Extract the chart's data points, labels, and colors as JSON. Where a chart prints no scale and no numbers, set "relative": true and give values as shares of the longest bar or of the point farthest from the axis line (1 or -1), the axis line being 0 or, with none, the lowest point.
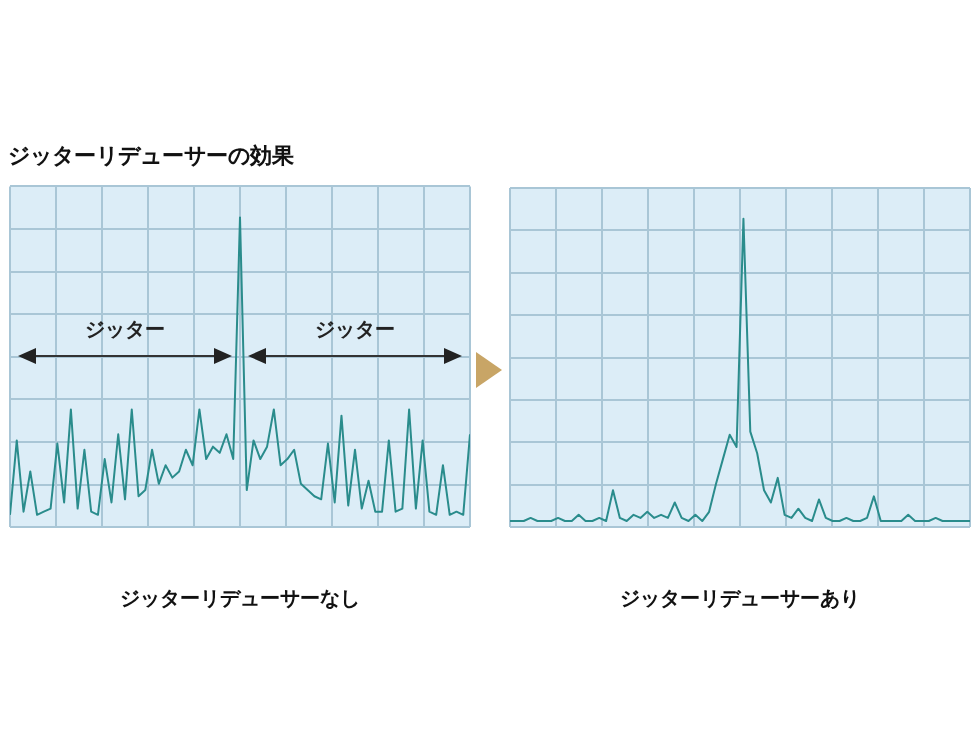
{
  "chart_data": [
    {
      "type": "line",
      "title": "ジッターリデューサーの効果",
      "xlabel": "ジッターリデューサーなし",
      "relative": true,
      "grid": true,
      "marker": "none",
      "line_style": "solid",
      "legend": false,
      "annotations": [
        "ジッター",
        "ジッター"
      ],
      "categories": [
        null,
        null,
        null,
        null,
        null,
        null,
        null,
        null,
        null,
        null,
        null,
        null,
        null,
        null,
        null,
        null,
        null,
        null,
        null,
        null,
        null,
        null,
        null,
        null,
        null,
        null,
        null,
        null,
        null,
        null,
        null,
        null,
        null,
        null,
        null,
        null,
        null,
        null,
        null,
        null,
        null,
        null,
        null,
        null,
        null,
        null,
        null,
        null,
        null,
        null,
        null,
        null,
        null,
        null,
        null,
        null,
        null,
        null,
        null,
        null,
        null,
        null,
        null,
        null,
        null,
        null,
        null,
        null,
        null
      ],
      "series": [
        {
          "color": "#2a8c8c",
          "values": [
            0.04,
            0.28,
            0.05,
            0.18,
            0.04,
            0.05,
            0.06,
            0.27,
            0.08,
            0.38,
            0.06,
            0.25,
            0.05,
            0.04,
            0.22,
            0.08,
            0.3,
            0.09,
            0.38,
            0.1,
            0.12,
            0.25,
            0.14,
            0.2,
            0.16,
            0.18,
            0.25,
            0.2,
            0.38,
            0.22,
            0.26,
            0.24,
            0.3,
            0.22,
            1.0,
            0.12,
            0.28,
            0.22,
            0.26,
            0.38,
            0.2,
            0.22,
            0.25,
            0.14,
            0.12,
            0.1,
            0.09,
            0.27,
            0.08,
            0.36,
            0.07,
            0.25,
            0.06,
            0.15,
            0.05,
            0.05,
            0.28,
            0.05,
            0.06,
            0.38,
            0.06,
            0.28,
            0.05,
            0.04,
            0.2,
            0.04,
            0.05,
            0.04,
            0.3
          ]
        }
      ]
    },
    {
      "type": "line",
      "xlabel": "ジッターリデューサーあり",
      "relative": true,
      "grid": true,
      "marker": "none",
      "line_style": "solid",
      "legend": false,
      "categories": [
        null,
        null,
        null,
        null,
        null,
        null,
        null,
        null,
        null,
        null,
        null,
        null,
        null,
        null,
        null,
        null,
        null,
        null,
        null,
        null,
        null,
        null,
        null,
        null,
        null,
        null,
        null,
        null,
        null,
        null,
        null,
        null,
        null,
        null,
        null,
        null,
        null,
        null,
        null,
        null,
        null,
        null,
        null,
        null,
        null,
        null,
        null,
        null,
        null,
        null,
        null,
        null,
        null,
        null,
        null,
        null,
        null,
        null,
        null,
        null,
        null,
        null,
        null,
        null,
        null,
        null,
        null,
        null
      ],
      "series": [
        {
          "color": "#2a8c8c",
          "values": [
            0.02,
            0.02,
            0.02,
            0.03,
            0.02,
            0.02,
            0.02,
            0.03,
            0.02,
            0.02,
            0.04,
            0.02,
            0.02,
            0.03,
            0.02,
            0.12,
            0.03,
            0.02,
            0.04,
            0.03,
            0.05,
            0.03,
            0.04,
            0.03,
            0.08,
            0.03,
            0.02,
            0.04,
            0.02,
            0.05,
            0.14,
            0.22,
            0.3,
            0.26,
            1.0,
            0.31,
            0.24,
            0.12,
            0.08,
            0.16,
            0.04,
            0.03,
            0.06,
            0.03,
            0.02,
            0.09,
            0.03,
            0.02,
            0.02,
            0.03,
            0.02,
            0.02,
            0.03,
            0.1,
            0.02,
            0.02,
            0.02,
            0.02,
            0.04,
            0.02,
            0.02,
            0.02,
            0.03,
            0.02,
            0.02,
            0.02,
            0.02,
            0.02
          ]
        }
      ]
    }
  ]
}
